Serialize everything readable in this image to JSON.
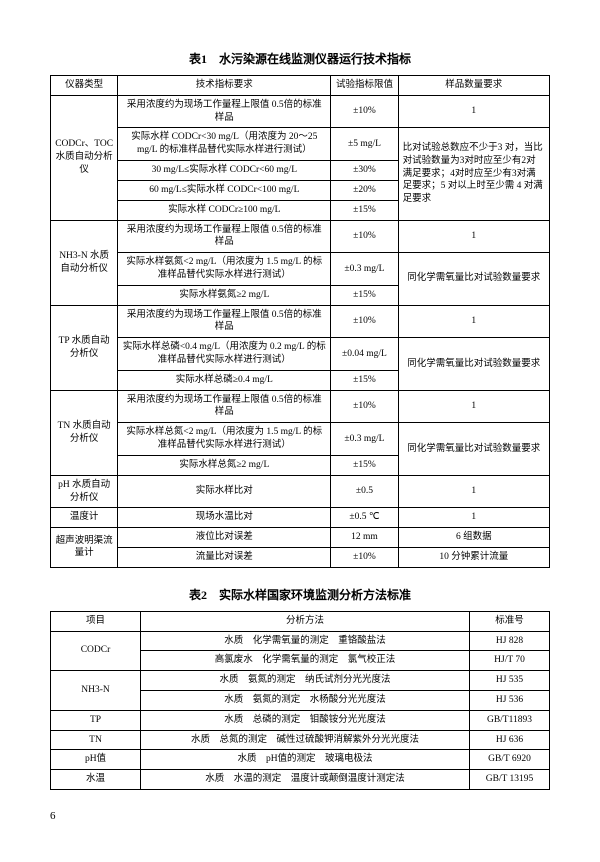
{
  "table1": {
    "title": "表1　水污染源在线监测仪器运行技术指标",
    "headers": [
      "仪器类型",
      "技术指标要求",
      "试验指标限值",
      "样品数量要求"
    ],
    "groups": [
      {
        "instrument": "CODCr、TOC 水质自动分析仪",
        "note": "比对试验总数应不少于3 对，当比对试验数量为3对时应至少有2对满足要求；4对时应至少有3对满足要求；5 对以上时至少需 4 对满足要求",
        "rows": [
          {
            "req": "采用浓度约为现场工作量程上限值 0.5倍的标准样品",
            "lim": "±10%",
            "qty": "1",
            "qspan": 1
          },
          {
            "req": "实际水样 CODCr<30 mg/L（用浓度为 20～25 mg/L 的标准样品替代实际水样进行测试）",
            "lim": "±5 mg/L",
            "qspan": 0
          },
          {
            "req": "30 mg/L≤实际水样 CODCr<60 mg/L",
            "lim": "±30%",
            "qspan": 0
          },
          {
            "req": "60 mg/L≤实际水样 CODCr<100 mg/L",
            "lim": "±20%",
            "qspan": 0
          },
          {
            "req": "实际水样 CODCr≥100 mg/L",
            "lim": "±15%",
            "qspan": 0
          }
        ]
      },
      {
        "instrument": "NH3-N 水质自动分析仪",
        "rows": [
          {
            "req": "采用浓度约为现场工作量程上限值 0.5倍的标准样品",
            "lim": "±10%",
            "qty": "1",
            "qspan": 1
          },
          {
            "req": "实际水样氨氮<2 mg/L（用浓度为 1.5 mg/L 的标准样品替代实际水样进行测试）",
            "lim": "±0.3 mg/L",
            "qty": "同化学需氧量比对试验数量要求",
            "qspan": 2
          },
          {
            "req": "实际水样氨氮≥2 mg/L",
            "lim": "±15%",
            "qspan": 0
          }
        ]
      },
      {
        "instrument": "TP 水质自动分析仪",
        "rows": [
          {
            "req": "采用浓度约为现场工作量程上限值 0.5倍的标准样品",
            "lim": "±10%",
            "qty": "1",
            "qspan": 1
          },
          {
            "req": "实际水样总磷<0.4 mg/L（用浓度为 0.2 mg/L 的标准样品替代实际水样进行测试）",
            "lim": "±0.04 mg/L",
            "qty": "同化学需氧量比对试验数量要求",
            "qspan": 2
          },
          {
            "req": "实际水样总磷≥0.4 mg/L",
            "lim": "±15%",
            "qspan": 0
          }
        ]
      },
      {
        "instrument": "TN 水质自动分析仪",
        "rows": [
          {
            "req": "采用浓度约为现场工作量程上限值 0.5倍的标准样品",
            "lim": "±10%",
            "qty": "1",
            "qspan": 1
          },
          {
            "req": "实际水样总氮<2 mg/L（用浓度为 1.5 mg/L 的标准样品替代实际水样进行测试）",
            "lim": "±0.3 mg/L",
            "qty": "同化学需氧量比对试验数量要求",
            "qspan": 2
          },
          {
            "req": "实际水样总氮≥2 mg/L",
            "lim": "±15%",
            "qspan": 0
          }
        ]
      },
      {
        "instrument": "pH 水质自动分析仪",
        "rows": [
          {
            "req": "实际水样比对",
            "lim": "±0.5",
            "qty": "1",
            "qspan": 1
          }
        ]
      },
      {
        "instrument": "温度计",
        "rows": [
          {
            "req": "现场水温比对",
            "lim": "±0.5 ℃",
            "qty": "1",
            "qspan": 1
          }
        ]
      },
      {
        "instrument": "超声波明渠流量计",
        "rows": [
          {
            "req": "液位比对误差",
            "lim": "12 mm",
            "qty": "6 组数据",
            "qspan": 1
          },
          {
            "req": "流量比对误差",
            "lim": "±10%",
            "qty": "10 分钟累计流量",
            "qspan": 1
          }
        ]
      }
    ]
  },
  "table2": {
    "title": "表2　实际水样国家环境监测分析方法标准",
    "headers": [
      "项目",
      "分析方法",
      "标准号"
    ],
    "rows": [
      {
        "proj": "CODCr",
        "span": 2,
        "method": "水质　化学需氧量的测定　重铬酸盐法",
        "std": "HJ 828"
      },
      {
        "method": "高氯废水　化学需氧量的测定　氯气校正法",
        "std": "HJ/T 70"
      },
      {
        "proj": "NH3-N",
        "span": 2,
        "method": "水质　氨氮的测定　纳氏试剂分光光度法",
        "std": "HJ 535"
      },
      {
        "method": "水质　氨氮的测定　水杨酸分光光度法",
        "std": "HJ 536"
      },
      {
        "proj": "TP",
        "span": 1,
        "method": "水质　总磷的测定　钼酸铵分光光度法",
        "std": "GB/T11893"
      },
      {
        "proj": "TN",
        "span": 1,
        "method": "水质　总氮的测定　碱性过硫酸钾消解紫外分光光度法",
        "std": "HJ 636"
      },
      {
        "proj": "pH值",
        "span": 1,
        "method": "水质　pH值的测定　玻璃电极法",
        "std": "GB/T 6920"
      },
      {
        "proj": "水温",
        "span": 1,
        "method": "水质　水温的测定　温度计或颠倒温度计测定法",
        "std": "GB/T 13195"
      }
    ]
  },
  "page": "6"
}
